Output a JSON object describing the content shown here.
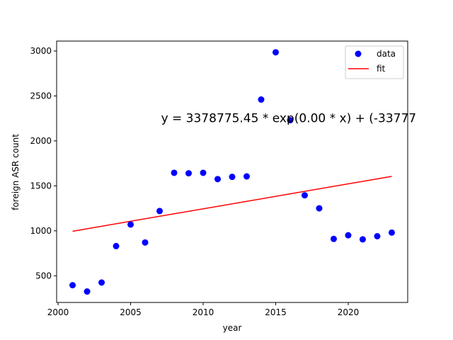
{
  "chart_data": {
    "type": "scatter",
    "xlabel": "year",
    "ylabel": "foreign ASR count",
    "xlim": [
      1999.9,
      2024.1
    ],
    "ylim": [
      203,
      3110
    ],
    "x_ticks": [
      2000,
      2005,
      2010,
      2015,
      2020
    ],
    "y_ticks": [
      500,
      1000,
      1500,
      2000,
      2500,
      3000
    ],
    "legend_position": "top-right",
    "series": [
      {
        "name": "data",
        "kind": "scatter",
        "color": "#0000ff",
        "x": [
          2001,
          2002,
          2003,
          2004,
          2005,
          2006,
          2007,
          2008,
          2009,
          2010,
          2011,
          2012,
          2013,
          2014,
          2015,
          2016,
          2017,
          2018,
          2019,
          2020,
          2021,
          2022,
          2023
        ],
        "y": [
          395,
          325,
          425,
          830,
          1070,
          870,
          1220,
          1645,
          1640,
          1645,
          1575,
          1600,
          1605,
          2460,
          2985,
          2230,
          1395,
          1250,
          910,
          950,
          905,
          940,
          980
        ]
      },
      {
        "name": "fit",
        "kind": "line",
        "color": "#ff0000",
        "x": [
          2001,
          2023
        ],
        "y": [
          995,
          1605
        ]
      }
    ],
    "annotation": {
      "text": "y = 3378775.45 * exp(0.00 * x) + (-33777",
      "x": 2007.1,
      "y": 2255
    }
  }
}
